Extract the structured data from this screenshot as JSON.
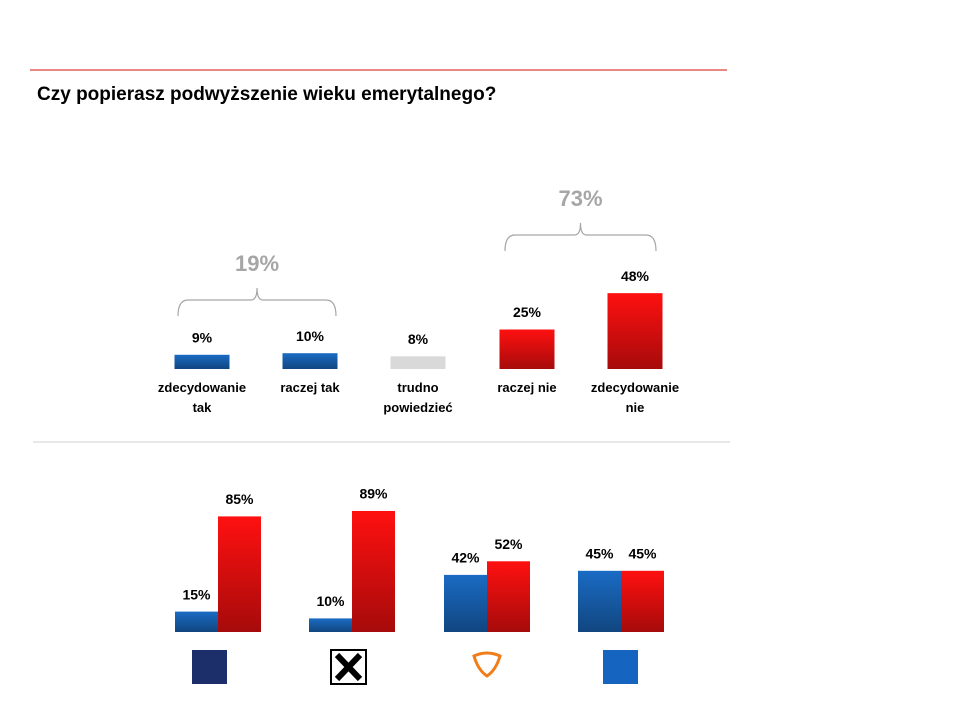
{
  "chart_data": [
    {
      "type": "bar",
      "title": "Czy popierasz podwyższenie wieku emerytalnego?",
      "categories": [
        "zdecydowanie tak",
        "raczej tak",
        "trudno powiedzieć",
        "raczej nie",
        "zdecydowanie nie"
      ],
      "values": [
        9,
        10,
        8,
        25,
        48
      ],
      "value_labels": [
        "9%",
        "10%",
        "8%",
        "25%",
        "48%"
      ],
      "colors": [
        "#1a6bc4",
        "#1a6bc4",
        "#d9d9d9",
        "#ff1010",
        "#ff1010"
      ],
      "annotations": [
        "19%",
        "73%"
      ]
    },
    {
      "type": "grouped_bar",
      "categories": [
        null,
        null,
        null,
        null
      ],
      "series": [
        {
          "color": "#1a6bc4",
          "values": [
            15,
            10,
            42,
            45
          ],
          "value_labels": [
            "15%",
            "10%",
            "42%",
            "45%"
          ]
        },
        {
          "color": "#ff1010",
          "values": [
            85,
            89,
            52,
            45
          ],
          "value_labels": [
            "85%",
            "89%",
            "52%",
            "45%"
          ]
        }
      ]
    }
  ]
}
